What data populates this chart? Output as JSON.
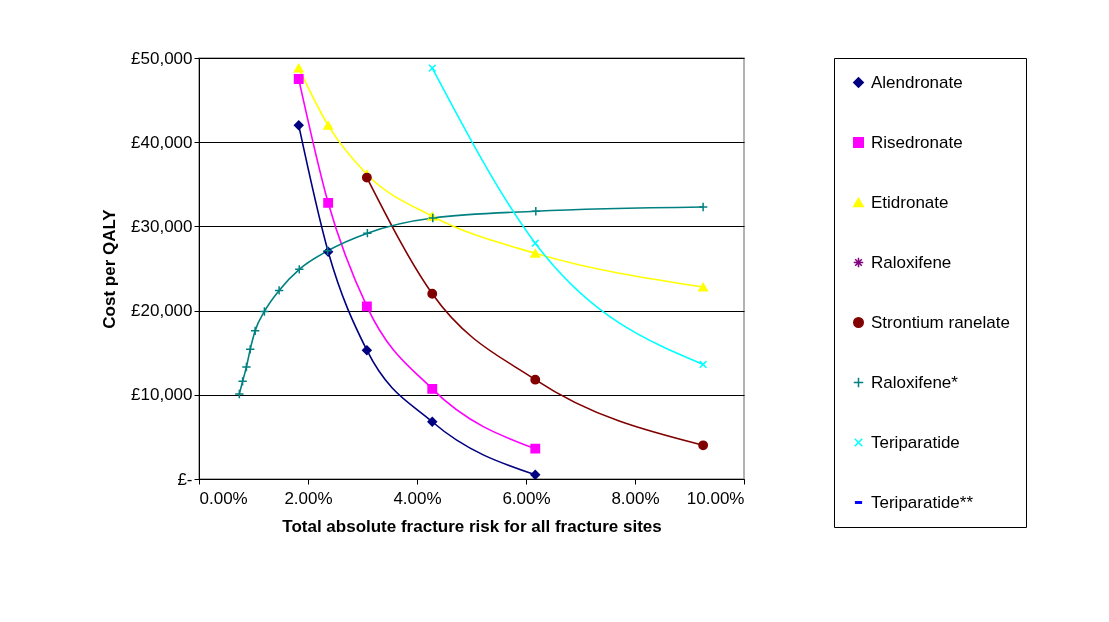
{
  "chart_data": {
    "type": "line",
    "xlabel": "Total absolute fracture risk for all fracture sites",
    "ylabel": "Cost per QALY",
    "xlim": [
      0,
      10
    ],
    "xticks": [
      {
        "value": 0,
        "label": "0.00%"
      },
      {
        "value": 2,
        "label": "2.00%"
      },
      {
        "value": 4,
        "label": "4.00%"
      },
      {
        "value": 6,
        "label": "6.00%"
      },
      {
        "value": 8,
        "label": "8.00%"
      },
      {
        "value": 10,
        "label": "10.00%"
      }
    ],
    "ylim": [
      0,
      50000
    ],
    "yticks": [
      {
        "value": 0,
        "label": "£-"
      },
      {
        "value": 10000,
        "label": "£10,000"
      },
      {
        "value": 20000,
        "label": "£20,000"
      },
      {
        "value": 30000,
        "label": "£30,000"
      },
      {
        "value": 40000,
        "label": "£40,000"
      },
      {
        "value": 50000,
        "label": "£50,000"
      }
    ],
    "grid": "y",
    "legend": "right",
    "series": [
      {
        "name": "Alendronate",
        "color": "#000080",
        "marker": "diamond",
        "x": [
          1.83,
          2.37,
          3.08,
          4.28,
          6.17
        ],
        "values": [
          42000,
          27000,
          15300,
          6800,
          500
        ]
      },
      {
        "name": "Risedronate",
        "color": "#ff00ff",
        "marker": "square",
        "x": [
          1.83,
          2.37,
          3.08,
          4.28,
          6.17
        ],
        "values": [
          47500,
          32800,
          20500,
          10700,
          3600
        ]
      },
      {
        "name": "Etidronate",
        "color": "#ffff00",
        "marker": "triangle",
        "x": [
          1.83,
          2.37,
          3.08,
          4.28,
          6.17,
          9.25
        ],
        "values": [
          48800,
          42000,
          36200,
          31200,
          26800,
          22800
        ]
      },
      {
        "name": "Raloxifene",
        "color": "#800080",
        "marker": "star"
      },
      {
        "name": "Strontium ranelate",
        "color": "#800000",
        "marker": "circle",
        "x": [
          3.08,
          4.28,
          6.17,
          9.25
        ],
        "values": [
          35800,
          22000,
          11800,
          4000
        ]
      },
      {
        "name": "Raloxifene*",
        "color": "#008080",
        "marker": "plus",
        "x": [
          0.74,
          0.8,
          0.87,
          0.94,
          1.03,
          1.2,
          1.47,
          1.84,
          2.36,
          3.09,
          4.29,
          6.18,
          9.25
        ],
        "values": [
          10100,
          11600,
          13300,
          15400,
          17600,
          19900,
          22400,
          24900,
          27100,
          29200,
          31000,
          31800,
          32300
        ]
      },
      {
        "name": "Teriparatide",
        "color": "#00ffff",
        "marker": "cross",
        "x": [
          4.28,
          6.17,
          9.25
        ],
        "values": [
          48800,
          28000,
          13600
        ]
      },
      {
        "name": "Teriparatide**",
        "color": "#0000ff",
        "marker": "dash"
      }
    ]
  }
}
